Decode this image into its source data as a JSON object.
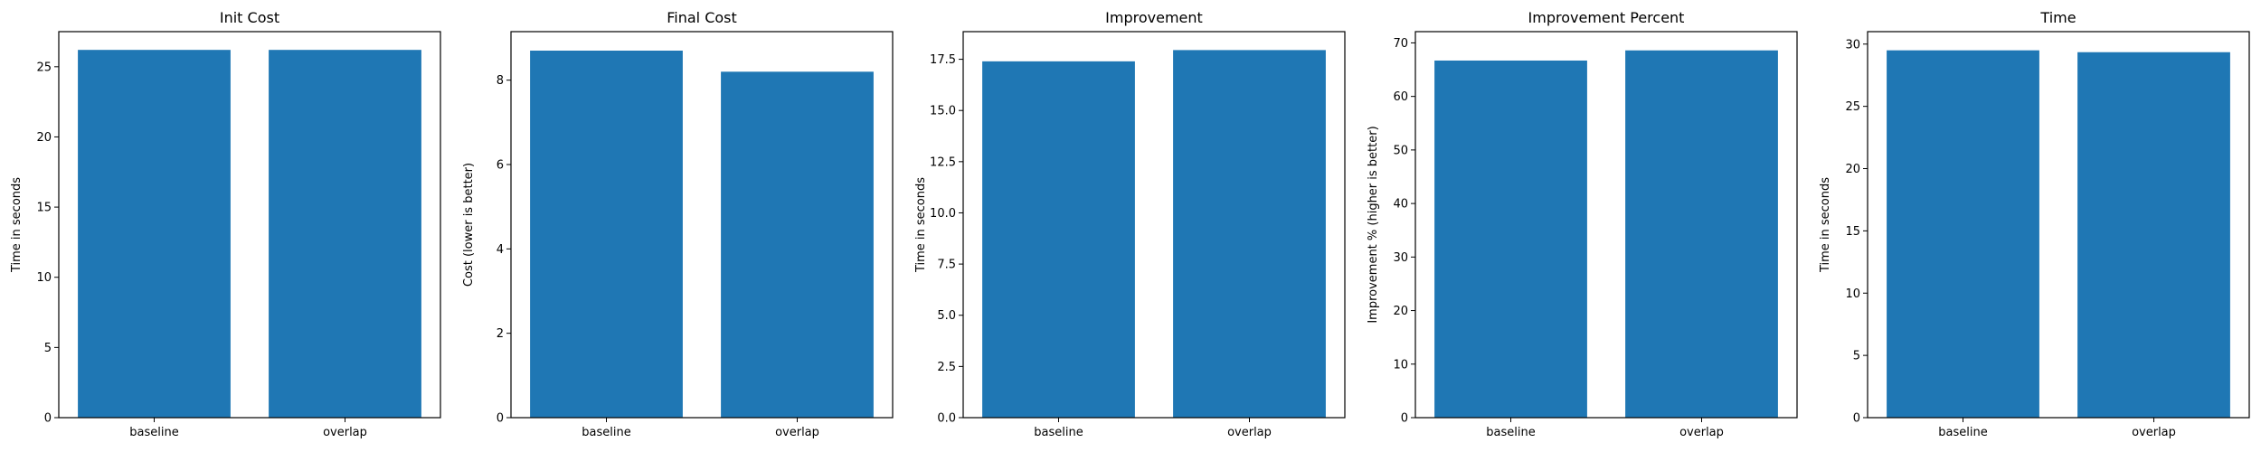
{
  "bar_color": "#1f77b4",
  "chart_data": [
    {
      "type": "bar",
      "title": "Init Cost",
      "ylabel": "Time in seconds",
      "xlabel": "",
      "categories": [
        "baseline",
        "overlap"
      ],
      "values": [
        26.2,
        26.2
      ],
      "ylim": [
        0,
        27.5
      ],
      "yticks": [
        0,
        5,
        10,
        15,
        20,
        25
      ],
      "ytick_labels": [
        "0",
        "5",
        "10",
        "15",
        "20",
        "25"
      ],
      "grid": false
    },
    {
      "type": "bar",
      "title": "Final Cost",
      "ylabel": "Cost (lower is better)",
      "xlabel": "",
      "categories": [
        "baseline",
        "overlap"
      ],
      "values": [
        8.7,
        8.2
      ],
      "ylim": [
        0,
        9.15
      ],
      "yticks": [
        0,
        2,
        4,
        6,
        8
      ],
      "ytick_labels": [
        "0",
        "2",
        "4",
        "6",
        "8"
      ],
      "grid": false
    },
    {
      "type": "bar",
      "title": "Improvement",
      "ylabel": "Time in seconds",
      "xlabel": "",
      "categories": [
        "baseline",
        "overlap"
      ],
      "values": [
        17.4,
        17.95
      ],
      "ylim": [
        0,
        18.85
      ],
      "yticks": [
        0,
        2.5,
        5,
        7.5,
        10,
        12.5,
        15,
        17.5
      ],
      "ytick_labels": [
        "0.0",
        "2.5",
        "5.0",
        "7.5",
        "10.0",
        "12.5",
        "15.0",
        "17.5"
      ],
      "grid": false
    },
    {
      "type": "bar",
      "title": "Improvement Percent",
      "ylabel": "Improvement % (higher is better)",
      "xlabel": "",
      "categories": [
        "baseline",
        "overlap"
      ],
      "values": [
        66.7,
        68.6
      ],
      "ylim": [
        0,
        72.1
      ],
      "yticks": [
        0,
        10,
        20,
        30,
        40,
        50,
        60,
        70
      ],
      "ytick_labels": [
        "0",
        "10",
        "20",
        "30",
        "40",
        "50",
        "60",
        "70"
      ],
      "grid": false
    },
    {
      "type": "bar",
      "title": "Time",
      "ylabel": "Time in seconds",
      "xlabel": "",
      "categories": [
        "baseline",
        "overlap"
      ],
      "values": [
        29.5,
        29.35
      ],
      "ylim": [
        0,
        31.0
      ],
      "yticks": [
        0,
        5,
        10,
        15,
        20,
        25,
        30
      ],
      "ytick_labels": [
        "0",
        "5",
        "10",
        "15",
        "20",
        "25",
        "30"
      ],
      "grid": false
    }
  ]
}
